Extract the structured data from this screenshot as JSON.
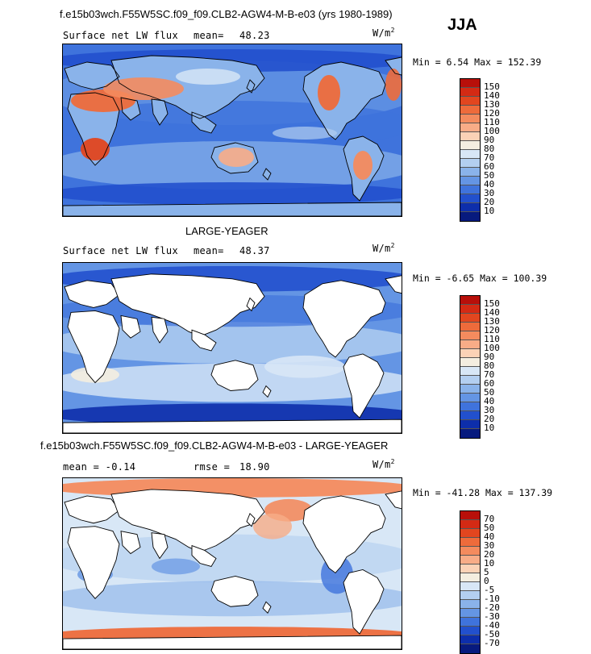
{
  "season": "JJA",
  "panels": [
    {
      "title": "f.e15b03wch.F55W5SC.f09_f09.CLB2-AGW4-M-B-e03 (yrs 1980-1989)",
      "field": "Surface net LW flux",
      "stat_label": "mean=",
      "stat_value": "48.23",
      "units": "W/m",
      "units_exp": "2",
      "minmax": "Min =   6.54 Max = 152.39",
      "levels": [
        "150",
        "140",
        "130",
        "120",
        "110",
        "100",
        "90",
        "80",
        "70",
        "60",
        "50",
        "40",
        "30",
        "20",
        "10"
      ],
      "colors": [
        "#b80f0a",
        "#d42a14",
        "#e2461f",
        "#ee6b3b",
        "#f48b5e",
        "#f8ac87",
        "#fbd2b6",
        "#f4eee0",
        "#d8e7f6",
        "#b3cff0",
        "#8ab3ea",
        "#6495e4",
        "#3f73dc",
        "#2250cd",
        "#0d2eab",
        "#071a7e"
      ],
      "land_white": false
    },
    {
      "title": "LARGE-YEAGER",
      "field": "Surface net LW flux",
      "stat_label": "mean=",
      "stat_value": "48.37",
      "units": "W/m",
      "units_exp": "2",
      "minmax": "Min =  -6.65 Max = 100.39",
      "levels": [
        "150",
        "140",
        "130",
        "120",
        "110",
        "100",
        "90",
        "80",
        "70",
        "60",
        "50",
        "40",
        "30",
        "20",
        "10"
      ],
      "colors": [
        "#b80f0a",
        "#d42a14",
        "#e2461f",
        "#ee6b3b",
        "#f48b5e",
        "#f8ac87",
        "#fbd2b6",
        "#f4eee0",
        "#d8e7f6",
        "#b3cff0",
        "#8ab3ea",
        "#6495e4",
        "#3f73dc",
        "#2250cd",
        "#0d2eab",
        "#071a7e"
      ],
      "land_white": true
    },
    {
      "title": "f.e15b03wch.F55W5SC.f09_f09.CLB2-AGW4-M-B-e03 - LARGE-YEAGER",
      "field": "mean =   -0.14",
      "stat_label": "rmse =",
      "stat_value": "18.90",
      "units": "W/m",
      "units_exp": "2",
      "minmax": "Min = -41.28 Max = 137.39",
      "levels": [
        "70",
        "50",
        "40",
        "30",
        "20",
        "10",
        "5",
        "0",
        "-5",
        "-10",
        "-20",
        "-30",
        "-40",
        "-50",
        "-70"
      ],
      "colors": [
        "#b80f0a",
        "#d42a14",
        "#e2461f",
        "#ee6b3b",
        "#f48b5e",
        "#f8ac87",
        "#fbd2b6",
        "#f4eee0",
        "#d8e7f6",
        "#b3cff0",
        "#8ab3ea",
        "#6495e4",
        "#3f73dc",
        "#2250cd",
        "#0d2eab",
        "#071a7e"
      ],
      "land_white": true
    }
  ],
  "chart_data": [
    {
      "type": "heatmap",
      "title": "f.e15b03wch.F55W5SC.f09_f09.CLB2-AGW4-M-B-e03 (yrs 1980-1989)",
      "variable": "Surface net LW flux",
      "units": "W/m2",
      "mean": 48.23,
      "min": 6.54,
      "max": 152.39,
      "contour_levels": [
        10,
        20,
        30,
        40,
        50,
        60,
        70,
        80,
        90,
        100,
        110,
        120,
        130,
        140,
        150
      ]
    },
    {
      "type": "heatmap",
      "title": "LARGE-YEAGER",
      "variable": "Surface net LW flux",
      "units": "W/m2",
      "mean": 48.37,
      "min": -6.65,
      "max": 100.39,
      "contour_levels": [
        10,
        20,
        30,
        40,
        50,
        60,
        70,
        80,
        90,
        100,
        110,
        120,
        130,
        140,
        150
      ]
    },
    {
      "type": "heatmap",
      "title": "f.e15b03wch.F55W5SC.f09_f09.CLB2-AGW4-M-B-e03 - LARGE-YEAGER",
      "units": "W/m2",
      "mean": -0.14,
      "rmse": 18.9,
      "min": -41.28,
      "max": 137.39,
      "contour_levels": [
        -70,
        -50,
        -40,
        -30,
        -20,
        -10,
        -5,
        0,
        5,
        10,
        20,
        30,
        40,
        50,
        70
      ]
    }
  ]
}
